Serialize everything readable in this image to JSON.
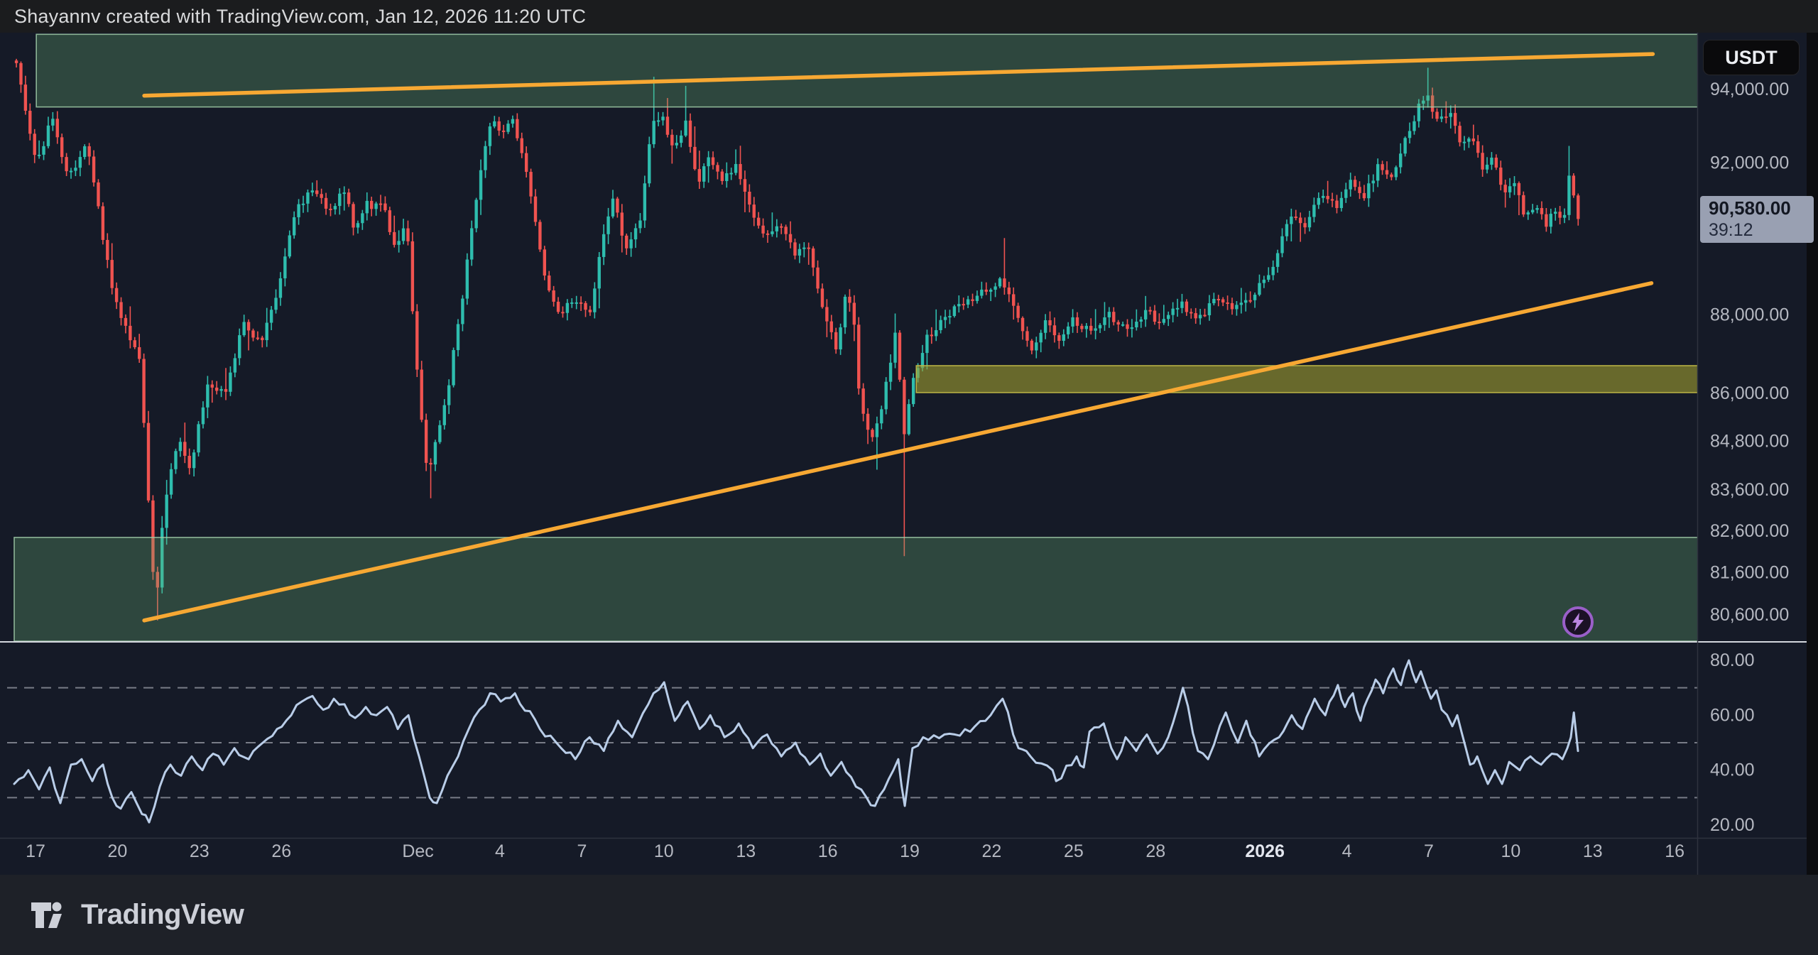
{
  "header": {
    "title": "Shayannv created with TradingView.com, Jan 12, 2026 11:20 UTC"
  },
  "footer": {
    "brand": "TradingView"
  },
  "colors": {
    "background": "#151a27",
    "up_candle": "#2ebdae",
    "down_candle": "#f05350",
    "trendline": "#f7a833",
    "zone_green_fill": "rgba(105,175,115,0.30)",
    "zone_green_border": "rgba(160,205,168,0.85)",
    "zone_olive_fill": "rgba(160,158,48,0.60)",
    "zone_olive_border": "rgba(190,182,70,0.95)",
    "rsi_line": "#b9cde8",
    "guide_dash": "#787c87",
    "axis_text": "#b5b8c1",
    "badge_bg": "#99a0b2",
    "pane_separator": "#d4d7de"
  },
  "chart_data": {
    "type": "candlestick",
    "quote_currency": "USDT",
    "last_price": 90580,
    "last_price_label": "90,580.00",
    "countdown": "39:12",
    "y_axis": {
      "scale": "log",
      "ticks": [
        {
          "label": "94,000.00",
          "price": 94000
        },
        {
          "label": "92,000.00",
          "price": 92000
        },
        {
          "label": "88,000.00",
          "price": 88000
        },
        {
          "label": "86,000.00",
          "price": 86000
        },
        {
          "label": "84,800.00",
          "price": 84800
        },
        {
          "label": "83,600.00",
          "price": 83600
        },
        {
          "label": "82,600.00",
          "price": 82600
        },
        {
          "label": "81,600.00",
          "price": 81600
        },
        {
          "label": "80,600.00",
          "price": 80600
        }
      ]
    },
    "x_axis": {
      "start_date": "Nov 17",
      "ticks": [
        {
          "label": "17",
          "day": 0
        },
        {
          "label": "20",
          "day": 3
        },
        {
          "label": "23",
          "day": 6
        },
        {
          "label": "26",
          "day": 9
        },
        {
          "label": "Dec",
          "day": 14
        },
        {
          "label": "4",
          "day": 17
        },
        {
          "label": "7",
          "day": 20
        },
        {
          "label": "10",
          "day": 23
        },
        {
          "label": "13",
          "day": 26
        },
        {
          "label": "16",
          "day": 29
        },
        {
          "label": "19",
          "day": 32
        },
        {
          "label": "22",
          "day": 35
        },
        {
          "label": "25",
          "day": 38
        },
        {
          "label": "28",
          "day": 41
        },
        {
          "label": "2026",
          "day": 45,
          "emphasis": true
        },
        {
          "label": "4",
          "day": 48
        },
        {
          "label": "7",
          "day": 51
        },
        {
          "label": "10",
          "day": 54
        },
        {
          "label": "13",
          "day": 57
        },
        {
          "label": "16",
          "day": 60
        }
      ]
    },
    "price_path": [
      [
        -0.65,
        94800
      ],
      [
        0.13,
        91900
      ],
      [
        0.65,
        93300
      ],
      [
        1.3,
        91600
      ],
      [
        1.95,
        92600
      ],
      [
        2.86,
        88700
      ],
      [
        3.51,
        87400
      ],
      [
        3.9,
        86900
      ],
      [
        4.29,
        82300
      ],
      [
        4.47,
        80800
      ],
      [
        4.81,
        83400
      ],
      [
        5.33,
        84900
      ],
      [
        5.72,
        84100
      ],
      [
        6.37,
        86300
      ],
      [
        7.02,
        86000
      ],
      [
        7.67,
        87800
      ],
      [
        8.32,
        87300
      ],
      [
        8.97,
        88600
      ],
      [
        9.62,
        90800
      ],
      [
        10.27,
        91300
      ],
      [
        10.92,
        90600
      ],
      [
        11.31,
        91500
      ],
      [
        11.7,
        90300
      ],
      [
        12.22,
        90900
      ],
      [
        12.87,
        90800
      ],
      [
        13.26,
        89600
      ],
      [
        13.65,
        90400
      ],
      [
        14.04,
        86500
      ],
      [
        14.43,
        83900
      ],
      [
        14.82,
        85100
      ],
      [
        15.21,
        86300
      ],
      [
        15.73,
        88500
      ],
      [
        16.12,
        90800
      ],
      [
        16.77,
        93200
      ],
      [
        17.16,
        92700
      ],
      [
        17.55,
        93300
      ],
      [
        18.07,
        91600
      ],
      [
        18.72,
        88900
      ],
      [
        19.24,
        88100
      ],
      [
        19.89,
        88400
      ],
      [
        20.41,
        88100
      ],
      [
        20.8,
        90000
      ],
      [
        21.19,
        91100
      ],
      [
        21.71,
        89700
      ],
      [
        22.23,
        90500
      ],
      [
        22.62,
        93100
      ],
      [
        23.01,
        93300
      ],
      [
        23.4,
        92400
      ],
      [
        23.87,
        93100
      ],
      [
        24.31,
        91500
      ],
      [
        24.7,
        92100
      ],
      [
        25.22,
        91500
      ],
      [
        25.74,
        92000
      ],
      [
        26.26,
        90700
      ],
      [
        26.78,
        89900
      ],
      [
        27.3,
        90400
      ],
      [
        27.82,
        89600
      ],
      [
        28.34,
        89900
      ],
      [
        28.86,
        88300
      ],
      [
        29.38,
        87200
      ],
      [
        29.77,
        88600
      ],
      [
        30.03,
        87800
      ],
      [
        30.21,
        86100
      ],
      [
        30.47,
        85300
      ],
      [
        30.73,
        84800
      ],
      [
        30.94,
        85300
      ],
      [
        31.2,
        86200
      ],
      [
        31.46,
        87200
      ],
      [
        31.61,
        87800
      ],
      [
        31.82,
        84800
      ],
      [
        32.18,
        86300
      ],
      [
        32.62,
        87300
      ],
      [
        33.27,
        87900
      ],
      [
        34.05,
        88300
      ],
      [
        35.43,
        88900
      ],
      [
        36.0,
        88000
      ],
      [
        36.52,
        87100
      ],
      [
        37.04,
        87800
      ],
      [
        37.56,
        87400
      ],
      [
        38.08,
        87900
      ],
      [
        38.73,
        87500
      ],
      [
        39.38,
        88000
      ],
      [
        40.03,
        87600
      ],
      [
        40.68,
        88100
      ],
      [
        41.33,
        87800
      ],
      [
        41.98,
        88300
      ],
      [
        42.63,
        87900
      ],
      [
        43.28,
        88400
      ],
      [
        43.93,
        88100
      ],
      [
        44.58,
        88500
      ],
      [
        45.36,
        89200
      ],
      [
        45.96,
        90600
      ],
      [
        46.53,
        90200
      ],
      [
        47.1,
        91200
      ],
      [
        47.7,
        90800
      ],
      [
        48.22,
        91500
      ],
      [
        48.74,
        91100
      ],
      [
        49.26,
        92000
      ],
      [
        49.78,
        91600
      ],
      [
        50.3,
        92800
      ],
      [
        50.69,
        93500
      ],
      [
        51.0,
        93800
      ],
      [
        51.47,
        93100
      ],
      [
        51.86,
        93500
      ],
      [
        52.25,
        92400
      ],
      [
        52.64,
        92800
      ],
      [
        53.03,
        91800
      ],
      [
        53.42,
        92200
      ],
      [
        53.81,
        91200
      ],
      [
        54.2,
        91600
      ],
      [
        54.59,
        90500
      ],
      [
        54.98,
        90900
      ],
      [
        55.37,
        90400
      ],
      [
        55.76,
        90700
      ],
      [
        56.02,
        90500
      ],
      [
        56.2,
        91700
      ],
      [
        56.36,
        91300
      ],
      [
        56.46,
        90580
      ]
    ],
    "special_wicks": [
      {
        "day": 4.47,
        "low": 80470
      },
      {
        "day": 14.43,
        "low": 83400
      },
      {
        "day": 22.62,
        "high": 94350
      },
      {
        "day": 23.87,
        "high": 94100
      },
      {
        "day": 30.73,
        "low": 84100
      },
      {
        "day": 31.82,
        "low": 82000
      },
      {
        "day": 35.43,
        "high": 90000
      },
      {
        "day": 51.0,
        "high": 94600
      },
      {
        "day": 56.2,
        "high": 92460
      }
    ],
    "zones": [
      {
        "name": "resistance-zone",
        "style": "green",
        "price_top": 95530,
        "price_bottom": 93520,
        "day_start": 0.03,
        "day_end": 60.85
      },
      {
        "name": "support-zone",
        "style": "green",
        "price_top": 82450,
        "price_bottom": 79950,
        "day_start": -0.78,
        "day_end": 60.85
      },
      {
        "name": "mid-supply-zone",
        "style": "olive",
        "price_top": 86700,
        "price_bottom": 86020,
        "day_start": 32.24,
        "day_end": 60.85
      }
    ],
    "trendlines": [
      {
        "name": "upper-resistance-trendline",
        "from": [
          3.98,
          93830
        ],
        "to": [
          59.2,
          94980
        ]
      },
      {
        "name": "lower-ascending-trendline",
        "from": [
          3.98,
          80470
        ],
        "to": [
          59.15,
          88820
        ]
      }
    ],
    "rsi": {
      "ticks": [
        80,
        60,
        40,
        20
      ],
      "guides": [
        70,
        50,
        30
      ],
      "path": [
        [
          -0.78,
          35
        ],
        [
          -0.26,
          40
        ],
        [
          0.13,
          33
        ],
        [
          0.52,
          41
        ],
        [
          0.91,
          28
        ],
        [
          1.3,
          42
        ],
        [
          1.69,
          44
        ],
        [
          2.08,
          36
        ],
        [
          2.47,
          42
        ],
        [
          2.81,
          30
        ],
        [
          3.12,
          26
        ],
        [
          3.51,
          32
        ],
        [
          3.9,
          24
        ],
        [
          4.16,
          21
        ],
        [
          4.55,
          34
        ],
        [
          4.94,
          42
        ],
        [
          5.33,
          38
        ],
        [
          5.72,
          45
        ],
        [
          6.11,
          40
        ],
        [
          6.5,
          46
        ],
        [
          6.89,
          42
        ],
        [
          7.28,
          48
        ],
        [
          7.8,
          44
        ],
        [
          8.32,
          50
        ],
        [
          8.84,
          55
        ],
        [
          9.36,
          60
        ],
        [
          9.75,
          65
        ],
        [
          10.14,
          67
        ],
        [
          10.53,
          62
        ],
        [
          10.92,
          66
        ],
        [
          11.31,
          64
        ],
        [
          11.7,
          59
        ],
        [
          12.09,
          63
        ],
        [
          12.48,
          60
        ],
        [
          12.87,
          63
        ],
        [
          13.26,
          55
        ],
        [
          13.65,
          60
        ],
        [
          14.04,
          45
        ],
        [
          14.43,
          30
        ],
        [
          14.69,
          28
        ],
        [
          15.08,
          38
        ],
        [
          15.47,
          45
        ],
        [
          15.86,
          55
        ],
        [
          16.25,
          62
        ],
        [
          16.64,
          68
        ],
        [
          17.03,
          65
        ],
        [
          17.55,
          68
        ],
        [
          18.46,
          55
        ],
        [
          19.24,
          48
        ],
        [
          19.76,
          44
        ],
        [
          20.28,
          52
        ],
        [
          20.8,
          47
        ],
        [
          21.32,
          58
        ],
        [
          21.84,
          52
        ],
        [
          22.62,
          68
        ],
        [
          23.01,
          72
        ],
        [
          23.4,
          58
        ],
        [
          23.87,
          65
        ],
        [
          24.31,
          55
        ],
        [
          24.7,
          60
        ],
        [
          25.22,
          52
        ],
        [
          25.74,
          57
        ],
        [
          26.26,
          48
        ],
        [
          26.78,
          53
        ],
        [
          27.3,
          45
        ],
        [
          27.82,
          50
        ],
        [
          28.34,
          42
        ],
        [
          28.73,
          46
        ],
        [
          29.11,
          38
        ],
        [
          29.5,
          43
        ],
        [
          30.03,
          34
        ],
        [
          30.42,
          30
        ],
        [
          30.73,
          27
        ],
        [
          31.06,
          33
        ],
        [
          31.4,
          40
        ],
        [
          31.58,
          44
        ],
        [
          31.82,
          27
        ],
        [
          32.1,
          48
        ],
        [
          32.49,
          52
        ],
        [
          33.27,
          53
        ],
        [
          34.21,
          54
        ],
        [
          34.39,
          56
        ],
        [
          34.96,
          60
        ],
        [
          35.4,
          66
        ],
        [
          35.98,
          48
        ],
        [
          36.42,
          45
        ],
        [
          37.23,
          40
        ],
        [
          37.36,
          36
        ],
        [
          38.11,
          45
        ],
        [
          38.37,
          41
        ],
        [
          38.58,
          54
        ],
        [
          39.1,
          57
        ],
        [
          39.38,
          48
        ],
        [
          39.59,
          44
        ],
        [
          39.9,
          52
        ],
        [
          40.29,
          47
        ],
        [
          40.68,
          53
        ],
        [
          41.07,
          46
        ],
        [
          41.46,
          52
        ],
        [
          42.0,
          70
        ],
        [
          42.55,
          47
        ],
        [
          42.92,
          44
        ],
        [
          43.57,
          61
        ],
        [
          44.01,
          50
        ],
        [
          44.32,
          58
        ],
        [
          44.79,
          45
        ],
        [
          45.52,
          52
        ],
        [
          45.98,
          60
        ],
        [
          46.37,
          55
        ],
        [
          46.82,
          66
        ],
        [
          47.21,
          60
        ],
        [
          47.67,
          71
        ],
        [
          47.93,
          63
        ],
        [
          48.22,
          68
        ],
        [
          48.5,
          58
        ],
        [
          48.76,
          66
        ],
        [
          49.05,
          73
        ],
        [
          49.33,
          68
        ],
        [
          49.7,
          77
        ],
        [
          49.98,
          71
        ],
        [
          50.27,
          80
        ],
        [
          50.53,
          72
        ],
        [
          50.71,
          76
        ],
        [
          51.08,
          66
        ],
        [
          51.28,
          69
        ],
        [
          51.47,
          62
        ],
        [
          51.86,
          56
        ],
        [
          52.04,
          60
        ],
        [
          52.51,
          42
        ],
        [
          52.77,
          45
        ],
        [
          53.16,
          35
        ],
        [
          53.42,
          40
        ],
        [
          53.68,
          35
        ],
        [
          53.94,
          43
        ],
        [
          54.33,
          40
        ],
        [
          54.72,
          45
        ],
        [
          55.11,
          42
        ],
        [
          55.5,
          46
        ],
        [
          55.89,
          44
        ],
        [
          56.07,
          48
        ],
        [
          56.2,
          52
        ],
        [
          56.31,
          61
        ],
        [
          56.46,
          47
        ]
      ]
    }
  }
}
